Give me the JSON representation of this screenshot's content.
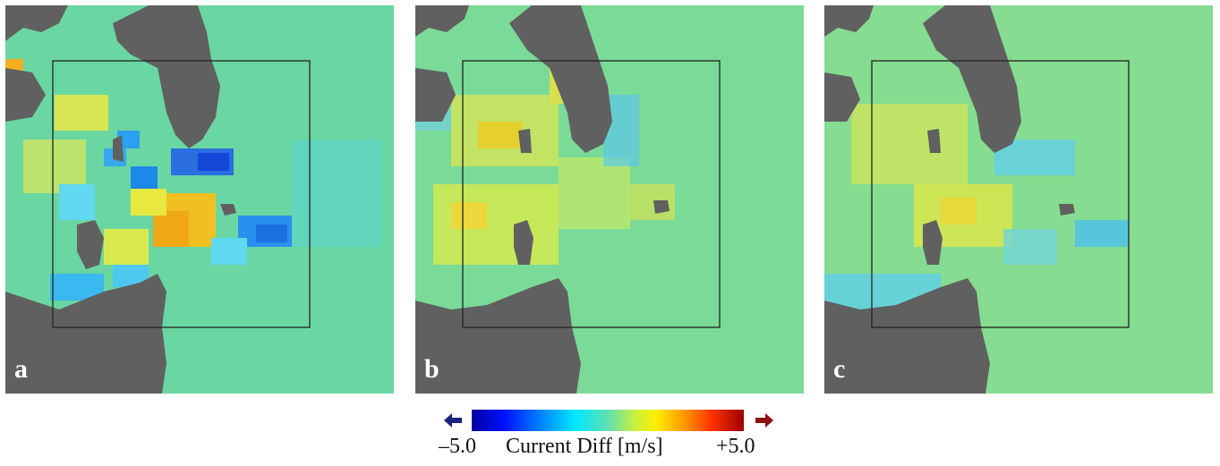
{
  "panels": [
    {
      "id": "a",
      "label": "a"
    },
    {
      "id": "b",
      "label": "b"
    },
    {
      "id": "c",
      "label": "c"
    }
  ],
  "colorbar": {
    "min_label": "–5.0",
    "title": "Current Diff [m/s]",
    "max_label": "+5.0",
    "range": [
      -5.0,
      5.0
    ],
    "colors": {
      "low": "#0000a0",
      "mid": "#60e0b0",
      "high": "#a00000",
      "left_arrow": "#1a237e",
      "right_arrow": "#8b1010"
    }
  },
  "colors": {
    "land": "#606060",
    "ocean_background": "#6ad6a2"
  }
}
